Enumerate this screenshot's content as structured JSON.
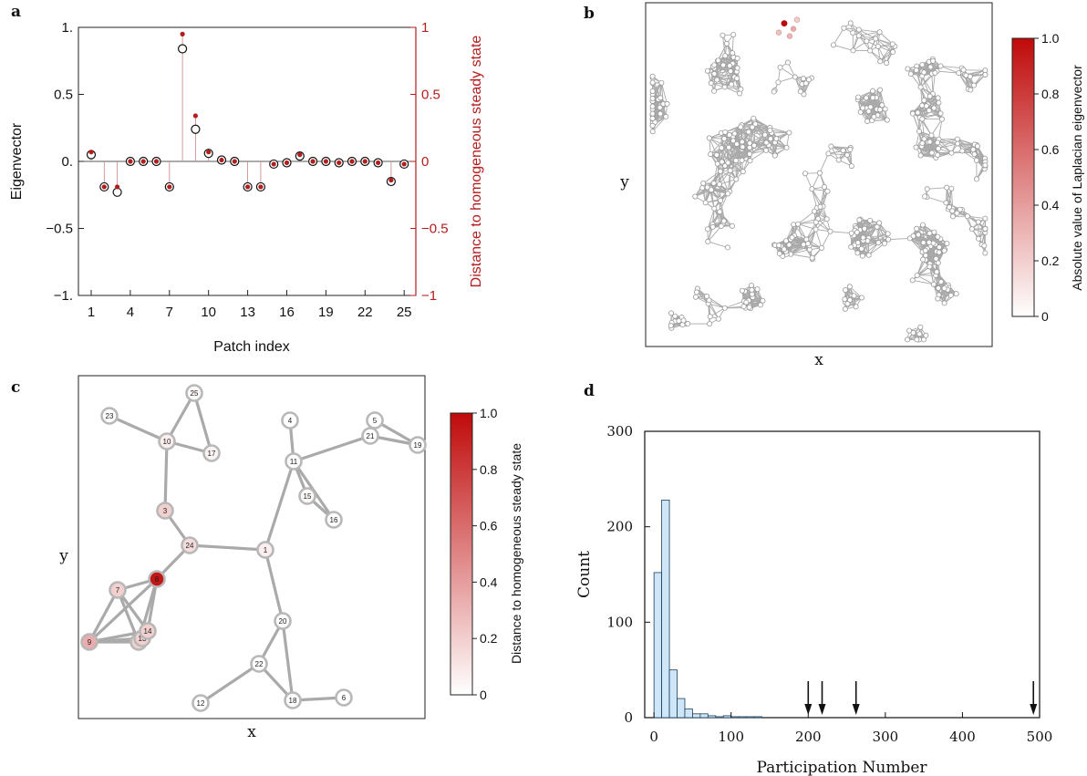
{
  "panel_letters": {
    "a": "a",
    "b": "b",
    "c": "c",
    "d": "d"
  },
  "colors": {
    "accent_red": "#b31d1d",
    "edge_gray": "#aaaaaa",
    "hist_fill": "#cfe6f8",
    "hist_edge": "#1b3f5a"
  },
  "chart_data": [
    {
      "type": "scatter",
      "panel": "a",
      "xlabel": "Patch index",
      "ylabel": "Eigenvector",
      "ylabel_right": "Distance to homogeneous steady state",
      "xticks": [
        1,
        4,
        7,
        10,
        13,
        16,
        19,
        22,
        25
      ],
      "yticks": [
        "1.",
        "0.5",
        "0.",
        "−0.5",
        "−1."
      ],
      "yticks_right": [
        "1",
        "0.5",
        "0",
        "−0.5",
        "−1"
      ],
      "ylim": [
        -1,
        1
      ],
      "x": [
        1,
        2,
        3,
        4,
        5,
        6,
        7,
        8,
        9,
        10,
        11,
        12,
        13,
        14,
        15,
        16,
        17,
        18,
        19,
        20,
        21,
        22,
        23,
        24,
        25
      ],
      "series": [
        {
          "values": [
            0.05,
            -0.19,
            -0.23,
            0.0,
            0.0,
            0.0,
            -0.19,
            0.84,
            0.24,
            0.06,
            0.01,
            0.0,
            -0.19,
            -0.19,
            -0.02,
            -0.01,
            0.04,
            0.0,
            0.0,
            -0.01,
            0.0,
            0.0,
            -0.01,
            -0.15,
            -0.02
          ]
        },
        {
          "values": [
            0.07,
            -0.19,
            -0.19,
            0.0,
            0.0,
            0.0,
            -0.19,
            0.95,
            0.34,
            0.07,
            0.01,
            0.0,
            -0.19,
            -0.19,
            -0.02,
            -0.01,
            0.05,
            0.0,
            0.0,
            -0.01,
            0.0,
            0.0,
            -0.01,
            -0.14,
            -0.02
          ]
        }
      ]
    },
    {
      "type": "network",
      "panel": "b",
      "xlabel": "x",
      "ylabel": "y",
      "colorbar": {
        "label": "Absolute value of Laplacian eigenvector",
        "ticks": [
          "1.0",
          "0.8",
          "0.6",
          "0.4",
          "0.2",
          "0"
        ],
        "range": [
          0,
          1
        ]
      },
      "highlight_node": {
        "x": 0.4,
        "y": 0.94,
        "value": 1.0
      }
    },
    {
      "type": "network",
      "panel": "c",
      "xlabel": "x",
      "ylabel": "y",
      "colorbar": {
        "label": "Distance to homogeneous steady state",
        "ticks": [
          "1.0",
          "0.8",
          "0.6",
          "0.4",
          "0.2",
          "0"
        ],
        "range": [
          0,
          1
        ]
      },
      "nodes": [
        {
          "id": "1",
          "value": 0.07
        },
        {
          "id": "2",
          "value": 0.19
        },
        {
          "id": "3",
          "value": 0.19
        },
        {
          "id": "4",
          "value": 0.0
        },
        {
          "id": "5",
          "value": 0.0
        },
        {
          "id": "6",
          "value": 0.0
        },
        {
          "id": "7",
          "value": 0.19
        },
        {
          "id": "8",
          "value": 0.95
        },
        {
          "id": "9",
          "value": 0.34
        },
        {
          "id": "10",
          "value": 0.07
        },
        {
          "id": "11",
          "value": 0.01
        },
        {
          "id": "12",
          "value": 0.0
        },
        {
          "id": "13",
          "value": 0.19
        },
        {
          "id": "14",
          "value": 0.19
        },
        {
          "id": "15",
          "value": 0.02
        },
        {
          "id": "16",
          "value": 0.01
        },
        {
          "id": "17",
          "value": 0.05
        },
        {
          "id": "18",
          "value": 0.0
        },
        {
          "id": "19",
          "value": 0.0
        },
        {
          "id": "20",
          "value": 0.01
        },
        {
          "id": "21",
          "value": 0.0
        },
        {
          "id": "22",
          "value": 0.0
        },
        {
          "id": "23",
          "value": 0.01
        },
        {
          "id": "24",
          "value": 0.14
        },
        {
          "id": "25",
          "value": 0.02
        }
      ],
      "edges": [
        [
          "23",
          "10"
        ],
        [
          "10",
          "25"
        ],
        [
          "25",
          "17"
        ],
        [
          "10",
          "17"
        ],
        [
          "10",
          "3"
        ],
        [
          "3",
          "24"
        ],
        [
          "24",
          "8"
        ],
        [
          "24",
          "1"
        ],
        [
          "1",
          "11"
        ],
        [
          "4",
          "11"
        ],
        [
          "11",
          "21"
        ],
        [
          "21",
          "5"
        ],
        [
          "5",
          "19"
        ],
        [
          "21",
          "19"
        ],
        [
          "11",
          "15"
        ],
        [
          "11",
          "16"
        ],
        [
          "15",
          "16"
        ],
        [
          "1",
          "20"
        ],
        [
          "20",
          "22"
        ],
        [
          "20",
          "18"
        ],
        [
          "22",
          "18"
        ],
        [
          "22",
          "12"
        ],
        [
          "18",
          "6"
        ],
        [
          "8",
          "7"
        ],
        [
          "8",
          "9"
        ],
        [
          "8",
          "14"
        ],
        [
          "8",
          "2"
        ],
        [
          "7",
          "9"
        ],
        [
          "7",
          "14"
        ],
        [
          "7",
          "2"
        ],
        [
          "9",
          "14"
        ],
        [
          "9",
          "2"
        ],
        [
          "14",
          "2"
        ],
        [
          "13",
          "9"
        ],
        [
          "13",
          "14"
        ]
      ]
    },
    {
      "type": "bar",
      "panel": "d",
      "xlabel": "Participation Number",
      "ylabel": "Count",
      "xticks": [
        0,
        100,
        200,
        300,
        400,
        500
      ],
      "yticks": [
        0,
        100,
        200,
        300
      ],
      "xlim": [
        -12,
        500
      ],
      "ylim": [
        0,
        300
      ],
      "bin_width": 10,
      "bins_start": [
        0,
        10,
        20,
        30,
        40,
        50,
        60,
        70,
        80,
        90,
        100,
        110,
        120,
        130
      ],
      "values": [
        152,
        228,
        50,
        20,
        9,
        4,
        4,
        2,
        1,
        2,
        1,
        1,
        1,
        1
      ],
      "arrows_at": [
        200,
        218,
        262,
        492
      ]
    }
  ]
}
